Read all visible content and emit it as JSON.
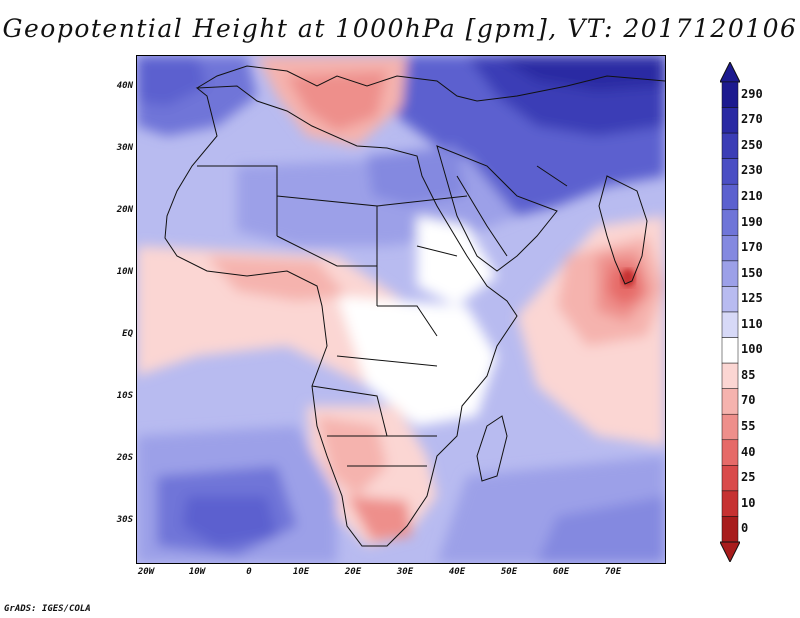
{
  "title": "Geopotential Height at 1000hPa [gpm], VT: 2017120106",
  "credit": "GrADS: IGES/COLA",
  "map": {
    "projection": "lat-lon",
    "lon_range": [
      -22,
      80
    ],
    "lat_range": [
      -36,
      46
    ],
    "x_ticks": [
      "20W",
      "10W",
      "0",
      "10E",
      "20E",
      "30E",
      "40E",
      "50E",
      "60E",
      "70E"
    ],
    "y_ticks": [
      "40N",
      "30N",
      "20N",
      "10N",
      "EQ",
      "10S",
      "20S",
      "30S"
    ]
  },
  "colorbar": {
    "levels": [
      "290",
      "270",
      "250",
      "230",
      "210",
      "190",
      "170",
      "150",
      "125",
      "110",
      "100",
      "85",
      "70",
      "55",
      "40",
      "25",
      "10",
      "0"
    ],
    "colors": [
      "#1c1a8f",
      "#2a2aa3",
      "#3b3db6",
      "#4b4fc4",
      "#5c61cf",
      "#6f75d8",
      "#8489e0",
      "#9ca0e8",
      "#b8bbf0",
      "#d7d9f7",
      "#ffffff",
      "#fbd6d3",
      "#f5b3ae",
      "#ee8f8b",
      "#e66a68",
      "#d94a4a",
      "#c63131",
      "#a81c1c"
    ]
  }
}
